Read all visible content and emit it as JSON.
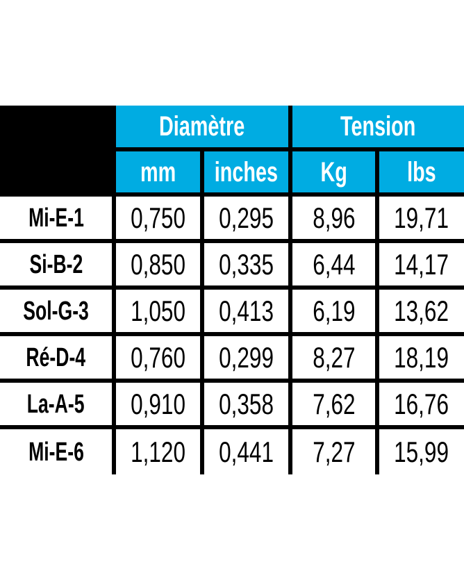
{
  "table": {
    "colors": {
      "accent_cyan": "#00ACE2",
      "header_block": "#000000",
      "border": "#000000",
      "header_text": "#ffffff",
      "body_text": "#000000"
    },
    "header_groups": [
      {
        "label": "Diamètre"
      },
      {
        "label": "Tension"
      }
    ],
    "sub_headers": [
      "mm",
      "inches",
      "Kg",
      "lbs"
    ],
    "rows": [
      {
        "label": "Mi-E-1",
        "values": [
          "0,750",
          "0,295",
          "8,96",
          "19,71"
        ]
      },
      {
        "label": "Si-B-2",
        "values": [
          "0,850",
          "0,335",
          "6,44",
          "14,17"
        ]
      },
      {
        "label": "Sol-G-3",
        "values": [
          "1,050",
          "0,413",
          "6,19",
          "13,62"
        ]
      },
      {
        "label": "Ré-D-4",
        "values": [
          "0,760",
          "0,299",
          "8,27",
          "18,19"
        ]
      },
      {
        "label": "La-A-5",
        "values": [
          "0,910",
          "0,358",
          "7,62",
          "16,76"
        ]
      },
      {
        "label": "Mi-E-6",
        "values": [
          "1,120",
          "0,441",
          "7,27",
          "15,99"
        ]
      }
    ]
  }
}
